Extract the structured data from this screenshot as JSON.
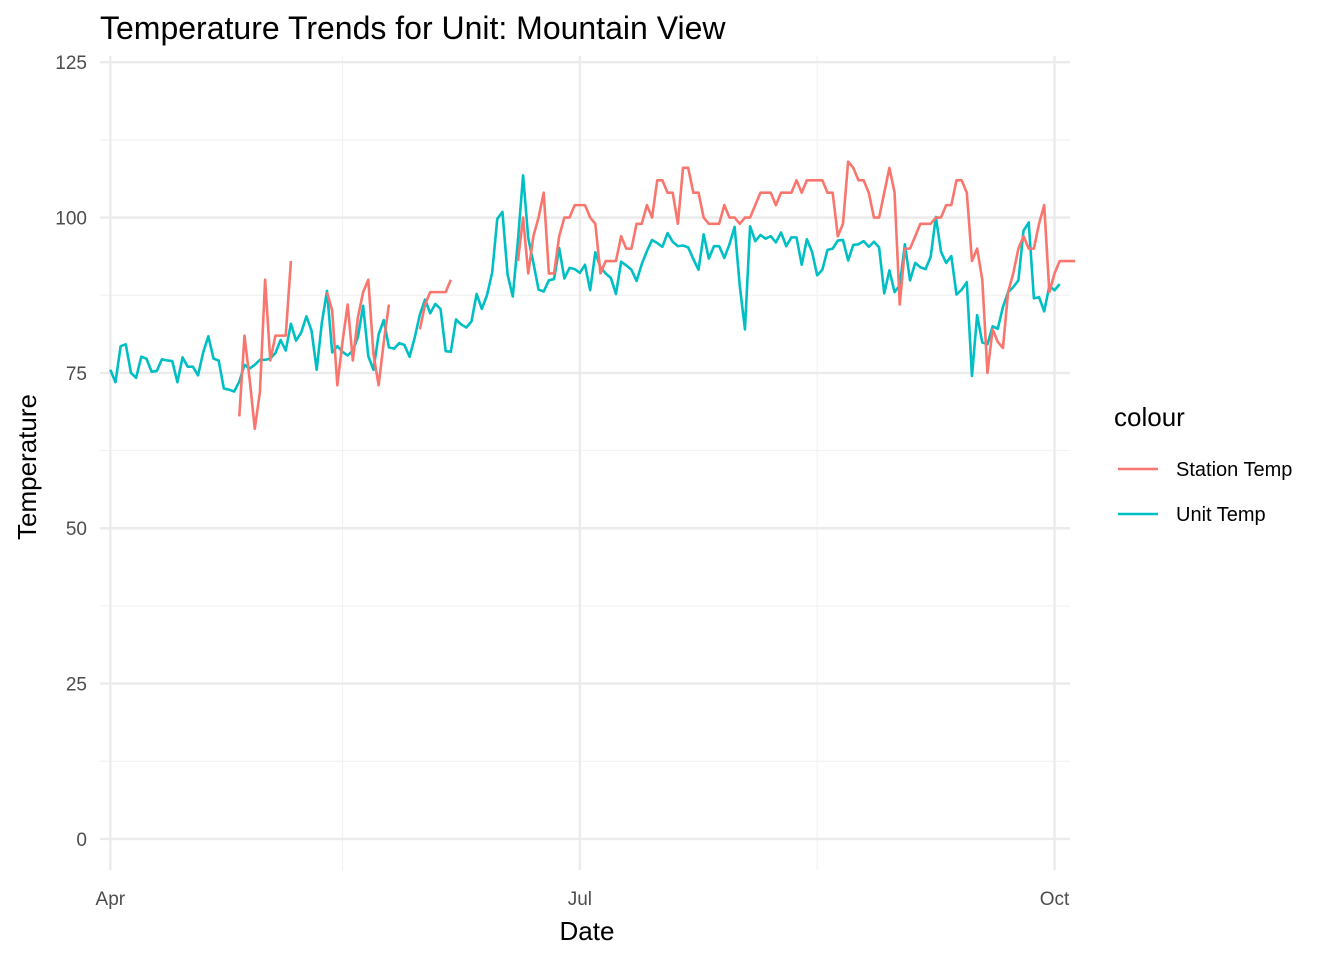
{
  "chart_data": {
    "type": "line",
    "title": "Temperature Trends for Unit: Mountain View",
    "xlabel": "Date",
    "ylabel": "Temperature",
    "x_start": "2021-04-01",
    "xlim": [
      "2021-03-30",
      "2021-10-04"
    ],
    "ylim": [
      -5,
      126
    ],
    "y_major_ticks": [
      0,
      25,
      50,
      75,
      100,
      125
    ],
    "y_minor_ticks": [
      12.5,
      37.5,
      62.5,
      87.5,
      112.5
    ],
    "x_major_ticks": [
      {
        "date": "2021-04-01",
        "label": "Apr"
      },
      {
        "date": "2021-07-01",
        "label": "Jul"
      },
      {
        "date": "2021-10-01",
        "label": "Oct"
      }
    ],
    "x_minor_ticks": [
      "2021-05-16",
      "2021-08-16"
    ],
    "grid": true,
    "legend": {
      "title": "colour",
      "position": "right"
    },
    "series": [
      {
        "name": "Unit Temp",
        "color": "#00bfc4",
        "values": [
          75.5,
          73.5,
          79.3,
          79.6,
          75,
          74.2,
          77.6,
          77.3,
          75.2,
          75.3,
          77.2,
          77,
          76.9,
          73.5,
          77.5,
          76,
          76,
          74.6,
          78.3,
          80.9,
          77.3,
          77,
          72.5,
          72.3,
          72,
          73.6,
          76.3,
          75.7,
          76.3,
          77.1,
          77.1,
          77.3,
          78.2,
          80.3,
          78.6,
          82.9,
          80.2,
          81.5,
          84.1,
          81.8,
          75.5,
          83.1,
          88.2,
          78.3,
          79.3,
          78.4,
          77.8,
          78.6,
          80.8,
          85.8,
          77.7,
          75.5,
          81.2,
          83.5,
          79.1,
          78.9,
          79.8,
          79.5,
          77.6,
          80.7,
          84.4,
          86.8,
          84.6,
          86.1,
          85.3,
          78.5,
          78.4,
          83.6,
          82.8,
          82.3,
          83.3,
          87.7,
          85.3,
          87.5,
          91.1,
          99.8,
          100.9,
          90.8,
          87.3,
          96.3,
          106.8,
          96.7,
          92.7,
          88.4,
          88.1,
          89.9,
          90.1,
          95.1,
          90.2,
          91.9,
          91.7,
          91.1,
          92.4,
          88.3,
          94.4,
          92,
          91,
          90.3,
          87.7,
          92.9,
          92.3,
          91.6,
          89.8,
          92.5,
          94.6,
          96.4,
          95.9,
          95.3,
          97.5,
          96.1,
          95.4,
          95.5,
          95.2,
          93.3,
          91.6,
          97.3,
          93.4,
          95.4,
          95.4,
          93.5,
          95.7,
          98.5,
          89,
          82,
          98.6,
          96.2,
          97.2,
          96.6,
          97,
          96,
          97.6,
          95.4,
          96.8,
          96.8,
          92.4,
          96.5,
          94.5,
          90.7,
          91.6,
          94.8,
          95,
          96.3,
          96.4,
          93.1,
          95.6,
          95.7,
          96.2,
          95.3,
          96.1,
          95.2,
          87.8,
          91.5,
          88,
          89.1,
          95.7,
          89.9,
          92.7,
          92,
          91.7,
          93.7,
          100.1,
          94.5,
          92.7,
          93.8,
          87.6,
          88.4,
          89.6,
          74.5,
          84.3,
          79.9,
          79.6,
          82.5,
          82.1,
          85.6,
          88,
          88.8,
          89.9,
          97.9,
          99.2,
          87,
          87.2,
          84.9,
          89,
          88.3,
          89.3
        ]
      },
      {
        "name": "Station Temp",
        "color": "#f8766d",
        "segments": [
          {
            "start": 25,
            "values": [
              68,
              81,
              74,
              66,
              72,
              90,
              77,
              81,
              81,
              81,
              93
            ]
          },
          {
            "start": 42,
            "values": [
              88,
              85,
              73,
              80,
              86,
              77,
              84,
              88,
              90,
              78,
              73,
              80,
              86
            ]
          },
          {
            "start": 60,
            "values": [
              82,
              86,
              88,
              88,
              88,
              88,
              90
            ]
          },
          {
            "start": 79,
            "values": [
              93,
              100,
              91,
              97,
              100,
              104,
              91,
              91,
              97,
              100,
              100,
              102,
              102,
              102,
              100,
              99,
              91,
              93,
              93,
              93,
              97,
              95,
              95,
              99,
              99,
              102,
              100,
              106,
              106,
              104,
              104,
              99,
              108,
              108,
              104,
              104,
              100,
              99,
              99,
              99,
              102,
              100,
              100,
              99,
              100,
              100,
              102,
              104,
              104,
              104,
              102,
              104,
              104,
              104,
              106,
              104,
              106,
              106,
              106,
              106,
              104,
              104,
              97,
              99,
              109,
              108,
              106,
              106,
              104,
              100,
              100,
              104,
              108,
              104,
              86,
              95,
              95,
              97,
              99,
              99,
              99,
              100,
              100,
              102,
              102,
              106,
              106,
              104,
              93,
              95,
              90,
              75,
              82,
              80,
              79,
              88,
              91,
              95,
              97,
              95,
              95,
              99,
              102,
              88,
              91,
              93,
              93,
              93,
              93
            ]
          }
        ]
      }
    ]
  }
}
